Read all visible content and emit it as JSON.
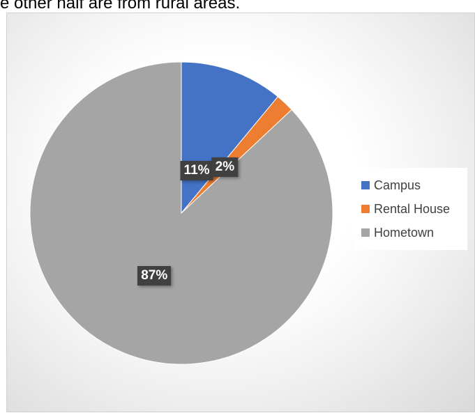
{
  "caption": "e other half are from rural areas.",
  "chart_data": {
    "type": "pie",
    "categories": [
      "Campus",
      "Rental House",
      "Hometown"
    ],
    "values": [
      11,
      2,
      87
    ],
    "labels": [
      "11%",
      "2%",
      "87%"
    ],
    "colors": [
      "#4472C4",
      "#ED7D31",
      "#A5A5A5"
    ],
    "legend_position": "right"
  }
}
